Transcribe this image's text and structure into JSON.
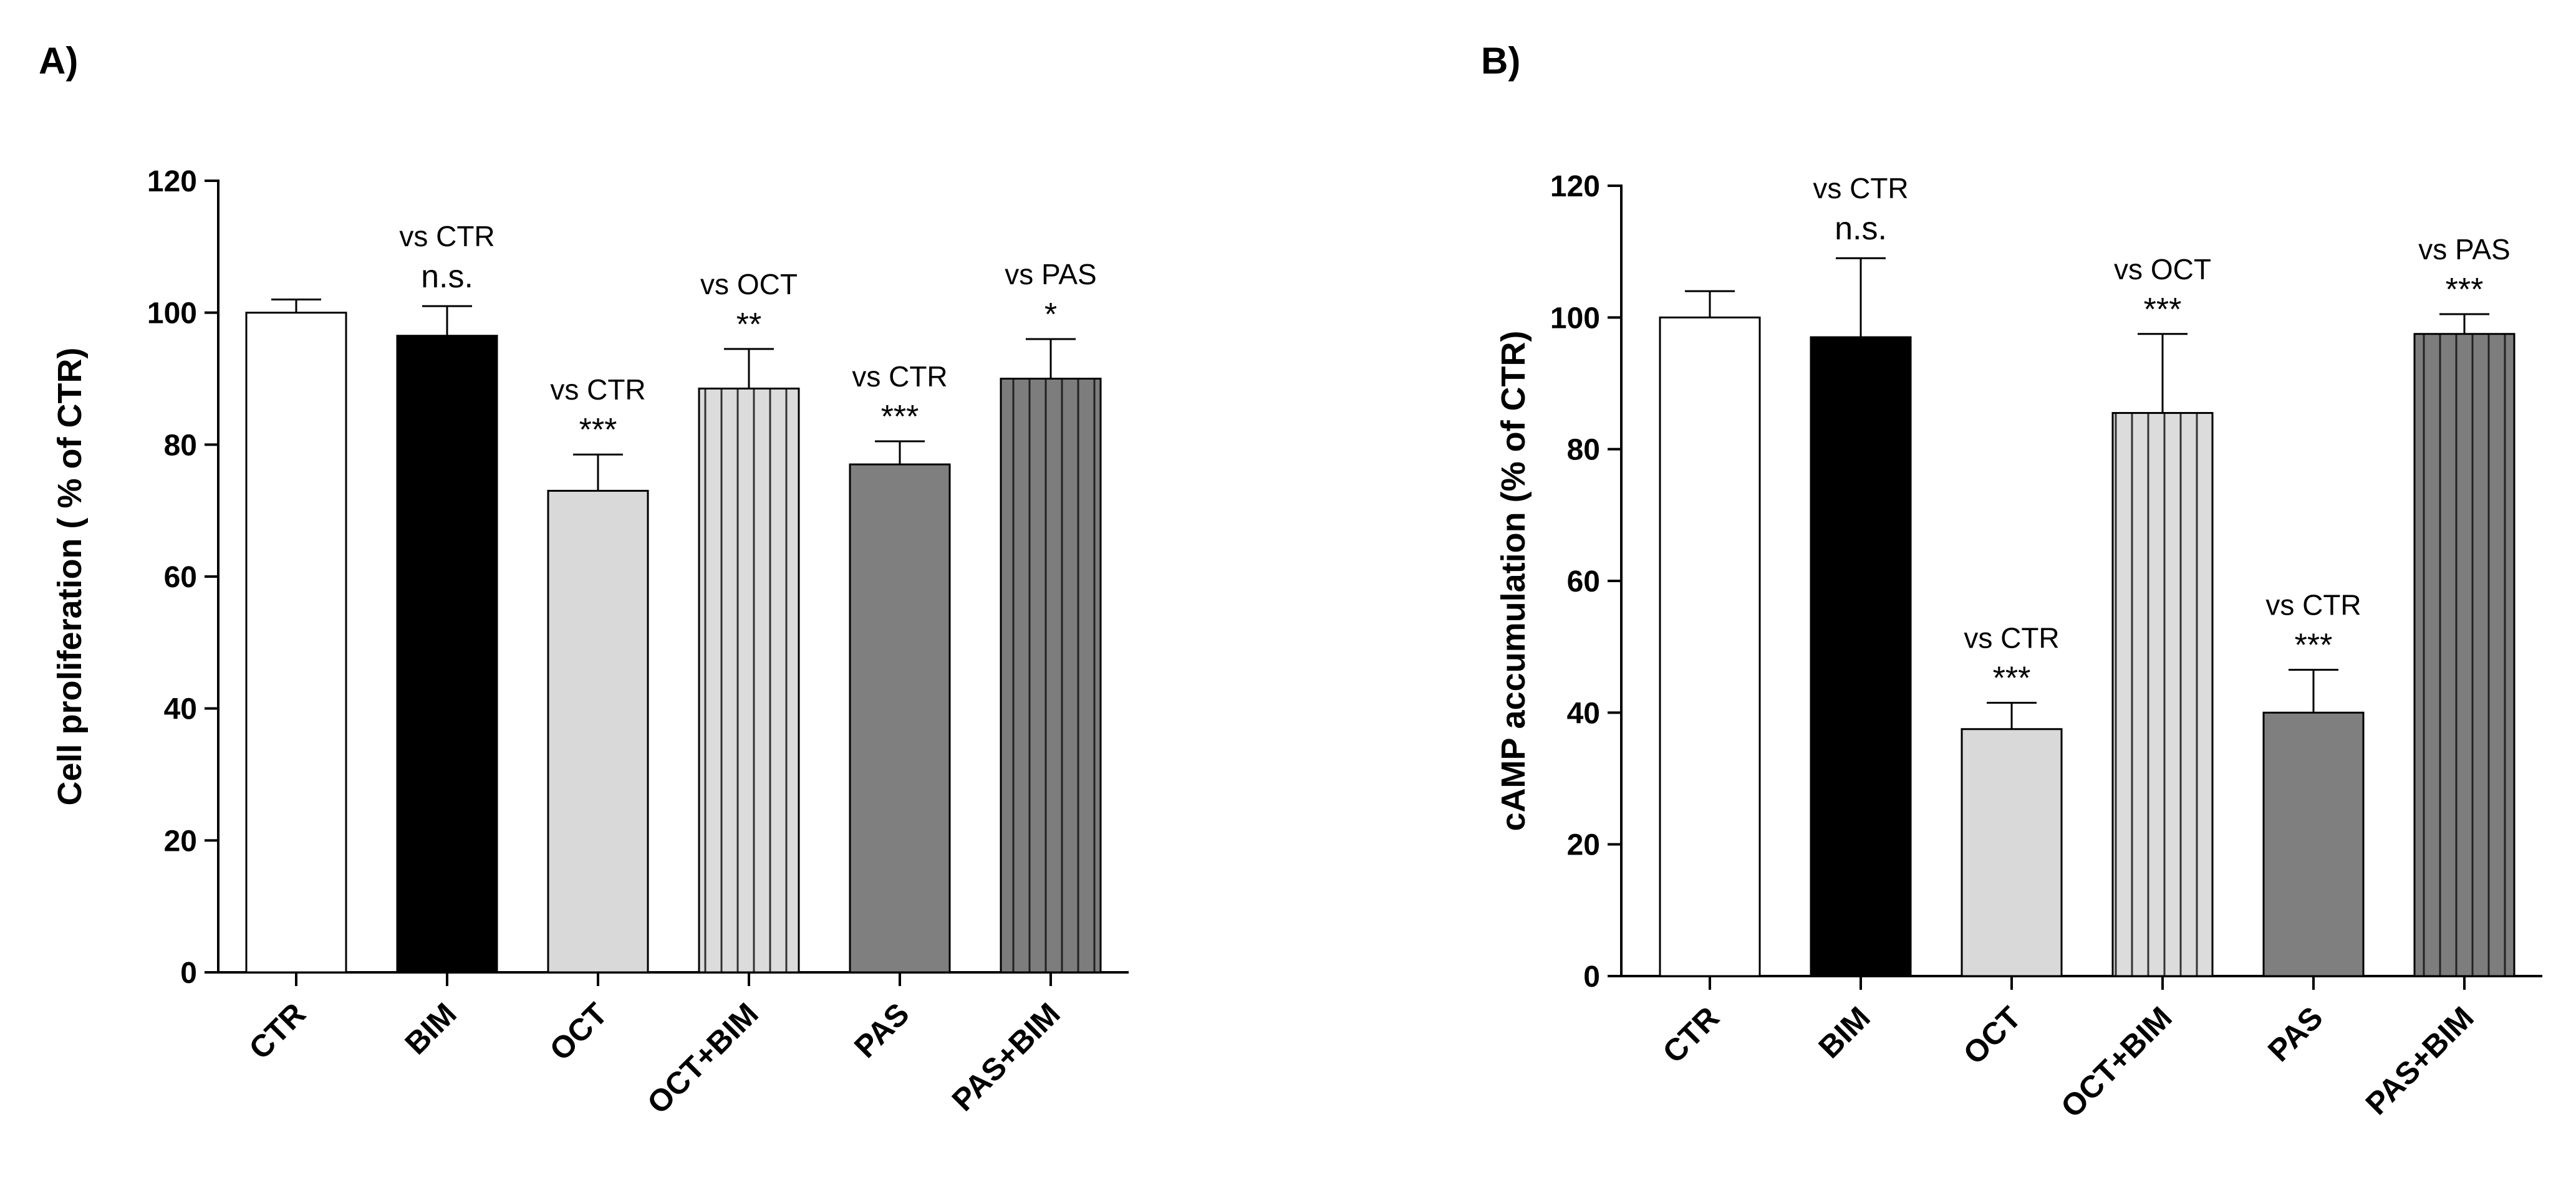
{
  "chart_data": [
    {
      "type": "bar",
      "panel_label": "A)",
      "ylabel": "Cell proliferation ( % of CTR)",
      "ylim": [
        0,
        120
      ],
      "yticks": [
        0,
        20,
        40,
        60,
        80,
        100,
        120
      ],
      "categories": [
        "CTR",
        "BIM",
        "OCT",
        "OCT+BIM",
        "PAS",
        "PAS+BIM"
      ],
      "values": [
        100,
        96.5,
        73,
        88.5,
        77,
        90
      ],
      "errors": [
        2,
        4.5,
        5.5,
        6,
        3.5,
        6
      ],
      "fills": [
        "white",
        "black",
        "light-gray",
        "light-gray-striped",
        "dark-gray",
        "dark-gray-striped"
      ],
      "comparisons": [
        "",
        "vs CTR",
        "vs CTR",
        "vs OCT",
        "vs CTR",
        "vs PAS"
      ],
      "significance": [
        "",
        "n.s.",
        "***",
        "**",
        "***",
        "*"
      ]
    },
    {
      "type": "bar",
      "panel_label": "B)",
      "ylabel": "cAMP accumulation (% of CTR)",
      "ylim": [
        0,
        120
      ],
      "yticks": [
        0,
        20,
        40,
        60,
        80,
        100,
        120
      ],
      "categories": [
        "CTR",
        "BIM",
        "OCT",
        "OCT+BIM",
        "PAS",
        "PAS+BIM"
      ],
      "values": [
        100,
        97,
        37.5,
        85.5,
        40,
        97.5
      ],
      "errors": [
        4,
        12,
        4,
        12,
        6.5,
        3
      ],
      "fills": [
        "white",
        "black",
        "light-gray",
        "light-gray-striped",
        "dark-gray",
        "dark-gray-striped"
      ],
      "comparisons": [
        "",
        "vs CTR",
        "vs CTR",
        "vs OCT",
        "vs CTR",
        "vs PAS"
      ],
      "significance": [
        "",
        "n.s.",
        "***",
        "***",
        "***",
        "***"
      ]
    }
  ],
  "colors": {
    "white": "#ffffff",
    "black": "#000000",
    "light-gray": "#d9d9d9",
    "dark-gray": "#7f7f7f"
  }
}
